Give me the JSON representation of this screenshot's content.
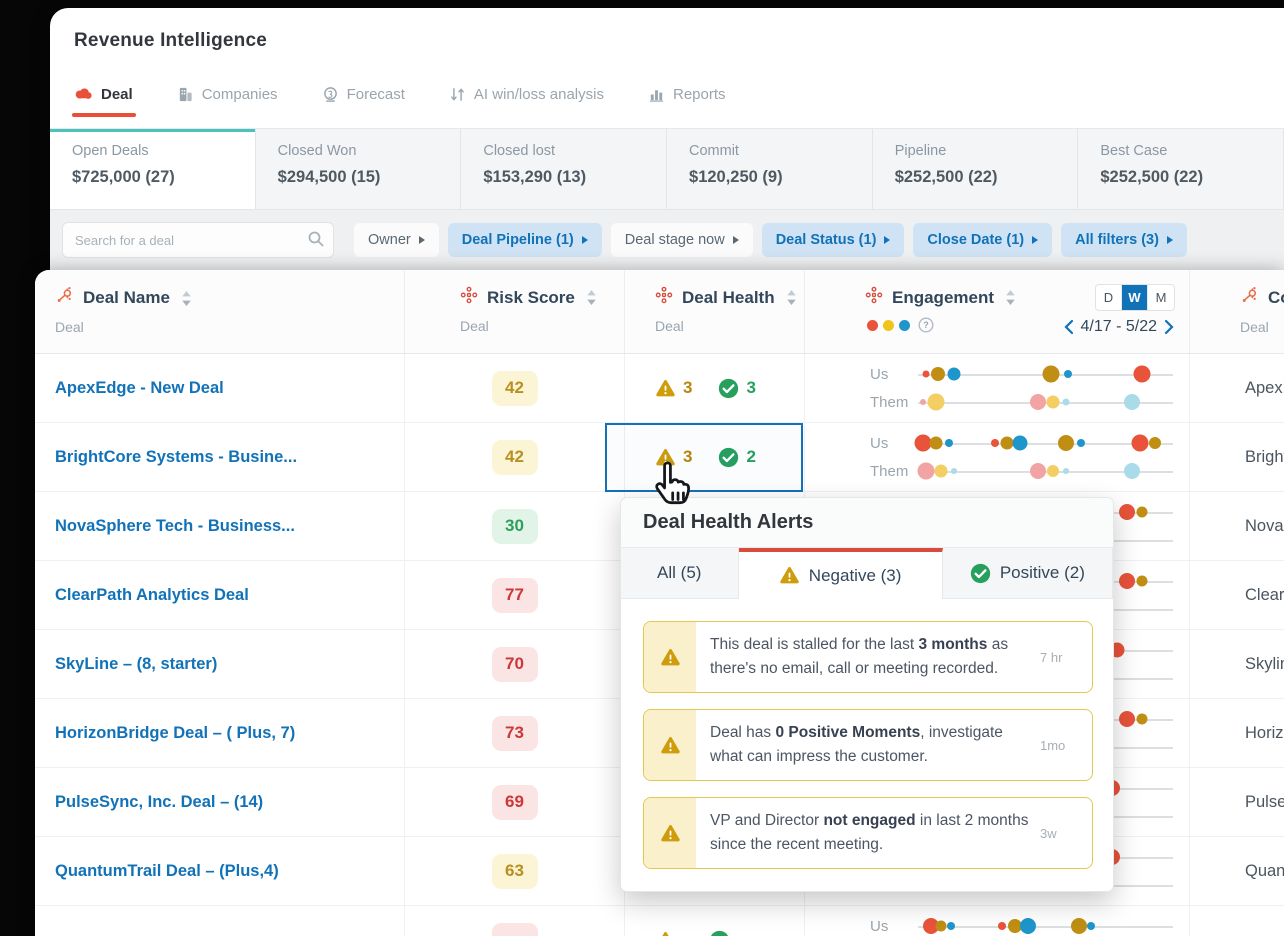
{
  "header": {
    "title": "Revenue Intelligence",
    "tabs": [
      {
        "label": "Deal",
        "icon": "deal-icon",
        "active": true
      },
      {
        "label": "Companies",
        "icon": "companies-icon",
        "active": false
      },
      {
        "label": "Forecast",
        "icon": "forecast-icon",
        "active": false
      },
      {
        "label": "AI win/loss analysis",
        "icon": "ai-winloss-icon",
        "active": false
      },
      {
        "label": "Reports",
        "icon": "reports-icon",
        "active": false
      }
    ]
  },
  "summary_cards": [
    {
      "label": "Open Deals",
      "value": "$725,000 (27)",
      "active": true
    },
    {
      "label": "Closed Won",
      "value": "$294,500 (15)",
      "active": false
    },
    {
      "label": "Closed lost",
      "value": "$153,290 (13)",
      "active": false
    },
    {
      "label": "Commit",
      "value": "$120,250 (9)",
      "active": false
    },
    {
      "label": "Pipeline",
      "value": "$252,500 (22)",
      "active": false
    },
    {
      "label": "Best Case",
      "value": "$252,500 (22)",
      "active": false
    }
  ],
  "filters": {
    "search_placeholder": "Search for a deal",
    "buttons": [
      {
        "label": "Owner",
        "active": false
      },
      {
        "label": "Deal Pipeline (1)",
        "active": true
      },
      {
        "label": "Deal stage now",
        "active": false
      },
      {
        "label": "Deal Status (1)",
        "active": true
      },
      {
        "label": "Close Date (1)",
        "active": true
      },
      {
        "label": "All filters (3)",
        "active": true
      }
    ]
  },
  "table": {
    "columns": [
      {
        "title": "Deal Name",
        "subtitle": "Deal",
        "icon": "hubspot-icon",
        "sortable": true
      },
      {
        "title": "Risk Score",
        "subtitle": "Deal",
        "icon": "metric-icon",
        "sortable": true
      },
      {
        "title": "Deal Health",
        "subtitle": "Deal",
        "icon": "metric-icon",
        "sortable": true
      },
      {
        "title": "Engagement",
        "subtitle": "",
        "icon": "metric-icon",
        "sortable": true
      },
      {
        "title": "Comp",
        "subtitle": "Deal",
        "icon": "hubspot-icon",
        "sortable": false
      }
    ],
    "engagement_header": {
      "legend_colors": [
        "#e8533a",
        "#f0c419",
        "#1e96cc"
      ],
      "period_options": [
        "D",
        "W",
        "M"
      ],
      "selected_period": "W",
      "date_range": "4/17 - 5/22"
    },
    "dot_colors": {
      "R": "#e8533a",
      "M": "#bf8e13",
      "B": "#1e96cc",
      "P": "#f2a3a3",
      "Y": "#f3cf63",
      "L": "#a9dbe8"
    },
    "rows": [
      {
        "name": "ApexEdge - New Deal",
        "risk": {
          "value": "42",
          "tone": "yellow"
        },
        "health": {
          "neg": "3",
          "pos": "3"
        },
        "company": "ApexEdge",
        "engagement": {
          "us": [
            [
              "R",
              3,
              3.5
            ],
            [
              "M",
              8,
              7
            ],
            [
              "B",
              14,
              6.5
            ],
            [
              "M",
              52,
              8.5
            ],
            [
              "B",
              59,
              4
            ],
            [
              "R",
              88,
              8.5
            ]
          ],
          "them": [
            [
              "P",
              2,
              3
            ],
            [
              "Y",
              7,
              8.5
            ],
            [
              "P",
              47,
              8
            ],
            [
              "Y",
              53,
              6.5
            ],
            [
              "L",
              58,
              3.5
            ],
            [
              "L",
              84,
              8
            ]
          ]
        }
      },
      {
        "name": "BrightCore Systems - Busine...",
        "risk": {
          "value": "42",
          "tone": "yellow"
        },
        "health": {
          "neg": "3",
          "pos": "2"
        },
        "selected": true,
        "company": "BrightCor",
        "engagement": {
          "us": [
            [
              "R",
              2,
              8.5
            ],
            [
              "M",
              7,
              6.5
            ],
            [
              "B",
              12,
              4
            ],
            [
              "R",
              30,
              4
            ],
            [
              "M",
              35,
              6.5
            ],
            [
              "B",
              40,
              7.5
            ],
            [
              "M",
              58,
              8
            ],
            [
              "B",
              64,
              4
            ],
            [
              "R",
              87,
              8.5
            ],
            [
              "M",
              93,
              6
            ]
          ],
          "them": [
            [
              "P",
              3,
              8.5
            ],
            [
              "Y",
              9,
              6.5
            ],
            [
              "L",
              14,
              3
            ],
            [
              "P",
              47,
              8
            ],
            [
              "Y",
              53,
              6
            ],
            [
              "L",
              58,
              3
            ],
            [
              "L",
              84,
              8
            ]
          ]
        }
      },
      {
        "name": "NovaSphere Tech - Business...",
        "risk": {
          "value": "30",
          "tone": "green"
        },
        "health": null,
        "company": "NovaSphe",
        "engagement": {
          "us": [
            [
              "R",
              82,
              8
            ],
            [
              "M",
              88,
              5.5
            ]
          ],
          "them": []
        }
      },
      {
        "name": "ClearPath Analytics Deal",
        "risk": {
          "value": "77",
          "tone": "red"
        },
        "health": null,
        "company": "ClearPath",
        "engagement": {
          "us": [
            [
              "R",
              82,
              8
            ],
            [
              "M",
              88,
              5.5
            ]
          ],
          "them": []
        }
      },
      {
        "name": "SkyLine – (8, starter)",
        "risk": {
          "value": "70",
          "tone": "red"
        },
        "health": null,
        "company": "Skyline",
        "engagement": {
          "us": [
            [
              "R",
              78,
              7.5
            ]
          ],
          "them": []
        }
      },
      {
        "name": "HorizonBridge Deal – ( Plus, 7)",
        "risk": {
          "value": "73",
          "tone": "red"
        },
        "health": null,
        "company": "HorizonB",
        "engagement": {
          "us": [
            [
              "R",
              82,
              8
            ],
            [
              "M",
              88,
              5.5
            ]
          ],
          "them": []
        }
      },
      {
        "name": "PulseSync, Inc. Deal – (14)",
        "risk": {
          "value": "69",
          "tone": "red"
        },
        "health": null,
        "company": "PulseSync",
        "engagement": {
          "us": [
            [
              "R",
              76,
              8
            ]
          ],
          "them": []
        }
      },
      {
        "name": "QuantumTrail Deal – (Plus,4)",
        "risk": {
          "value": "63",
          "tone": "yellow"
        },
        "health": null,
        "company": "Quantum",
        "engagement": {
          "us": [
            [
              "R",
              76,
              8
            ]
          ],
          "them": [
            [
              "L",
              70,
              5
            ]
          ]
        }
      },
      {
        "name": "",
        "risk": {
          "value": "",
          "tone": "red"
        },
        "health": {
          "neg": "",
          "pos": ""
        },
        "company": "",
        "engagement": {
          "us": [
            [
              "R",
              5,
              8
            ],
            [
              "M",
              9,
              5.5
            ],
            [
              "B",
              13,
              4
            ],
            [
              "R",
              33,
              4
            ],
            [
              "M",
              38,
              7
            ],
            [
              "B",
              43,
              8
            ],
            [
              "M",
              63,
              8
            ],
            [
              "B",
              68,
              4
            ]
          ],
          "them": []
        }
      }
    ]
  },
  "popup": {
    "title": "Deal Health Alerts",
    "tabs": [
      {
        "label": "All (5)",
        "icon": null,
        "active": false
      },
      {
        "label": "Negative (3)",
        "icon": "warning-icon",
        "active": true
      },
      {
        "label": "Positive (2)",
        "icon": "check-icon",
        "active": false
      }
    ],
    "alerts": [
      {
        "time": "7 hr",
        "parts": [
          {
            "text": "This deal is stalled for the last ",
            "bold": false
          },
          {
            "text": "3 months",
            "bold": true
          },
          {
            "text": " as there's no email, call or meeting recorded.",
            "bold": false
          }
        ]
      },
      {
        "time": "1mo",
        "parts": [
          {
            "text": "Deal has ",
            "bold": false
          },
          {
            "text": "0 Positive Moments",
            "bold": true
          },
          {
            "text": ", investigate what can impress the customer.",
            "bold": false
          }
        ]
      },
      {
        "time": "3w",
        "parts": [
          {
            "text": "VP and Director ",
            "bold": false
          },
          {
            "text": "not engaged",
            "bold": true
          },
          {
            "text": " in last 2 months since the recent meeting.",
            "bold": false
          }
        ]
      }
    ]
  },
  "colors": {
    "accent_blue": "#1272b8",
    "accent_red": "#e8503a",
    "teal": "#4ac2be",
    "positive_green": "#27a05e",
    "negative_mustard": "#cf9c0c",
    "risk_yellow_text": "#b8901f",
    "risk_green_text": "#2e9e5b",
    "risk_red_text": "#cb3837"
  }
}
